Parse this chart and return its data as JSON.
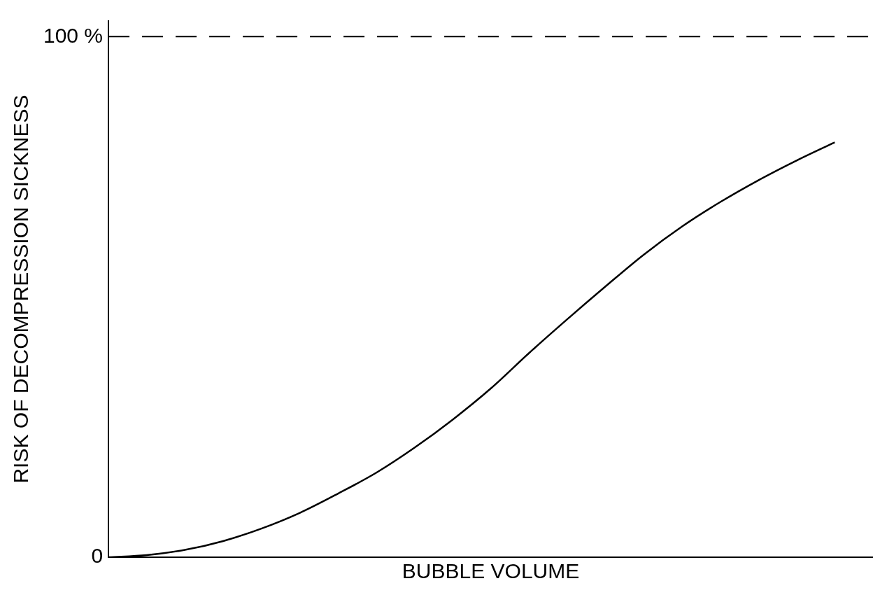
{
  "chart_data": {
    "type": "line",
    "xlabel": "BUBBLE VOLUME",
    "ylabel": "RISK OF DECOMPRESSION SICKNESS",
    "categories": [
      null,
      null,
      null,
      null,
      null,
      null,
      null,
      null,
      null,
      null,
      null,
      null,
      null,
      null,
      null,
      null,
      null,
      null,
      null,
      null,
      null
    ],
    "series": [
      {
        "color": "#000000",
        "values": [
          0,
          0.4,
          1.4,
          3.1,
          5.5,
          8.5,
          12.2,
          16.2,
          21,
          26.4,
          32.4,
          39.2,
          45.7,
          52,
          58.1,
          63.5,
          68.2,
          72.4,
          76.2,
          79.7,
          null
        ]
      }
    ],
    "ylim": [
      0,
      103
    ],
    "yticks": [
      {
        "value": 0,
        "label": "0"
      },
      {
        "value": 100,
        "label": "100 %"
      }
    ],
    "ref_lines": [
      {
        "axis": "y",
        "value": 100,
        "line_style": "dashed",
        "color": "#000000"
      }
    ],
    "tick_labels": "y",
    "marker": "none",
    "line_style": "solid"
  }
}
